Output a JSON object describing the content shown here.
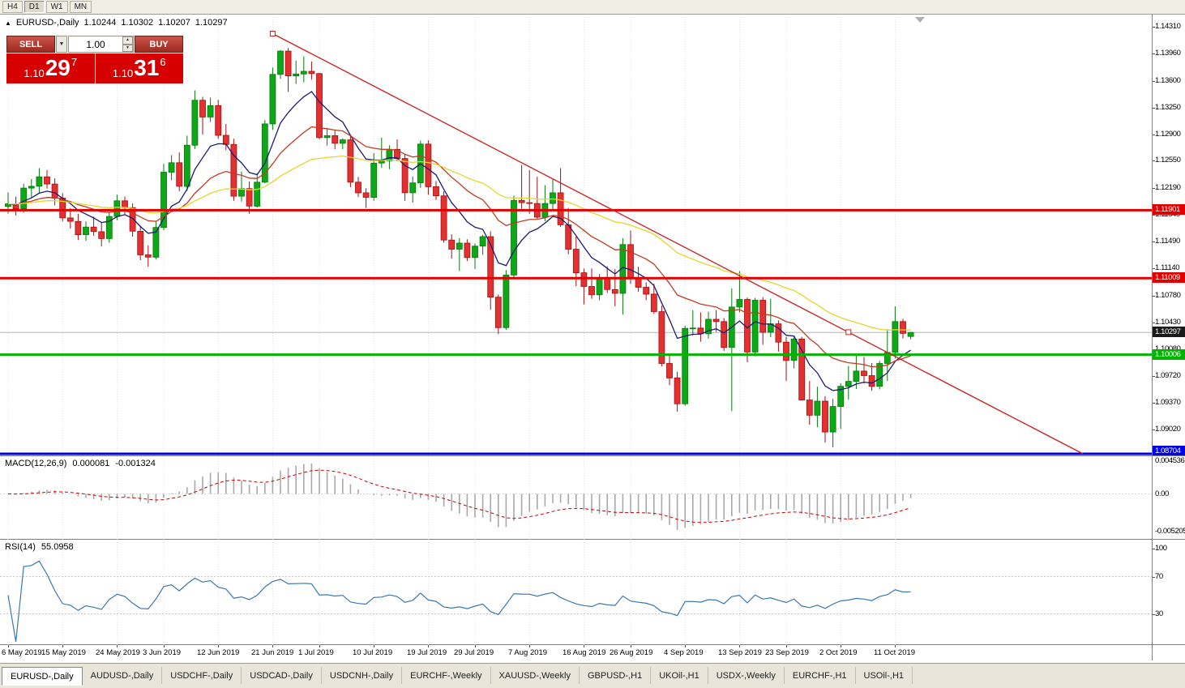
{
  "toolbar": {
    "buttons": [
      {
        "label": "H4",
        "active": false
      },
      {
        "label": "D1",
        "active": true
      },
      {
        "label": "W1",
        "active": false
      },
      {
        "label": "MN",
        "active": false
      }
    ]
  },
  "icons": {
    "dropdown": "▼",
    "spin_up": "▲",
    "spin_down": "▼"
  },
  "chart_header": {
    "collapse_icon": "▲",
    "symbol": "EURUSD-,Daily",
    "open": "1.10244",
    "high": "1.10302",
    "low": "1.10207",
    "close": "1.10297"
  },
  "trade_panel": {
    "sell_label": "SELL",
    "buy_label": "BUY",
    "volume": "1.00",
    "sell_price": {
      "base": "1.10",
      "pips": "29",
      "pipette": "7"
    },
    "buy_price": {
      "base": "1.10",
      "pips": "31",
      "pipette": "6"
    },
    "price_bg": "#d60000"
  },
  "indicators": {
    "macd": {
      "label": "MACD(12,26,9)",
      "value": "0.000081",
      "signal_value": "-0.001324",
      "colors": {
        "histogram": "#a8a8a8",
        "signal": "#cc0000"
      },
      "axis": [
        {
          "v": 0.004536,
          "label": "0.004536"
        },
        {
          "v": 0,
          "label": "0.00"
        },
        {
          "v": -0.005205,
          "label": "-0.005205"
        }
      ]
    },
    "rsi": {
      "label": "RSI(14)",
      "value": "55.0958",
      "color": "#3a76af",
      "levels": [
        70,
        30
      ],
      "axis": [
        {
          "v": 100,
          "label": "100"
        },
        {
          "v": 70,
          "label": "70"
        },
        {
          "v": 30,
          "label": "30"
        }
      ]
    }
  },
  "chart_data": {
    "type": "candlestick",
    "symbol": "EURUSD",
    "timeframe": "Daily",
    "y_ticks": [
      "1.14310",
      "1.13960",
      "1.13600",
      "1.13250",
      "1.12900",
      "1.12550",
      "1.12190",
      "1.11840",
      "1.11490",
      "1.11140",
      "1.10780",
      "1.10430",
      "1.10080",
      "1.09720",
      "1.09370",
      "1.09020"
    ],
    "x_ticks": [
      {
        "label": "6 May 2019",
        "i": 0
      },
      {
        "label": "15 May 2019",
        "i": 7
      },
      {
        "label": "24 May 2019",
        "i": 14
      },
      {
        "label": "3 Jun 2019",
        "i": 20
      },
      {
        "label": "12 Jun 2019",
        "i": 27
      },
      {
        "label": "21 Jun 2019",
        "i": 34
      },
      {
        "label": "1 Jul 2019",
        "i": 40
      },
      {
        "label": "10 Jul 2019",
        "i": 47
      },
      {
        "label": "19 Jul 2019",
        "i": 54
      },
      {
        "label": "29 Jul 2019",
        "i": 60
      },
      {
        "label": "7 Aug 2019",
        "i": 67
      },
      {
        "label": "16 Aug 2019",
        "i": 74
      },
      {
        "label": "26 Aug 2019",
        "i": 80
      },
      {
        "label": "4 Sep 2019",
        "i": 87
      },
      {
        "label": "13 Sep 2019",
        "i": 94
      },
      {
        "label": "23 Sep 2019",
        "i": 100
      },
      {
        "label": "2 Oct 2019",
        "i": 107
      },
      {
        "label": "11 Oct 2019",
        "i": 114
      }
    ],
    "levels": [
      {
        "price": 1.11901,
        "label": "1.11901",
        "color": "#e10000"
      },
      {
        "price": 1.11009,
        "label": "1.11009",
        "color": "#e10000"
      },
      {
        "price": 1.10006,
        "label": "1.10006",
        "color": "#00b400"
      },
      {
        "price": 1.08704,
        "label": "1.08704",
        "color": "#0000e1"
      }
    ],
    "current_price": {
      "price": 1.10297,
      "label": "1.10297",
      "badge_bg": "#1a1a1a"
    },
    "trendline": {
      "i1": 34,
      "p1": 1.1422,
      "i2": 108,
      "p2": 1.103,
      "color": "#cc2222"
    },
    "moving_averages": [
      {
        "period": 8,
        "color": "#1b1b74"
      },
      {
        "period": 20,
        "color": "#c23b22"
      },
      {
        "period": 45,
        "color": "#e7d52b"
      }
    ],
    "candle_colors": {
      "up": "#0da815",
      "up_stroke": "#067a0c",
      "down": "#e33030",
      "down_stroke": "#a31010"
    },
    "candles": [
      [
        1.1195,
        1.12135,
        1.11855,
        1.11985
      ],
      [
        1.11985,
        1.1208,
        1.1183,
        1.1192
      ],
      [
        1.1192,
        1.1225,
        1.1187,
        1.12192
      ],
      [
        1.12192,
        1.1231,
        1.1206,
        1.12215
      ],
      [
        1.12215,
        1.12455,
        1.12125,
        1.1234
      ],
      [
        1.1234,
        1.1243,
        1.12185,
        1.12245
      ],
      [
        1.12245,
        1.1232,
        1.11965,
        1.1206
      ],
      [
        1.1206,
        1.12125,
        1.11755,
        1.118
      ],
      [
        1.118,
        1.1193,
        1.1166,
        1.11755
      ],
      [
        1.11755,
        1.11855,
        1.1151,
        1.1158
      ],
      [
        1.1158,
        1.11755,
        1.115,
        1.1168
      ],
      [
        1.1168,
        1.11815,
        1.11565,
        1.1162
      ],
      [
        1.1162,
        1.11735,
        1.11425,
        1.1153
      ],
      [
        1.1153,
        1.1188,
        1.11475,
        1.1182
      ],
      [
        1.1182,
        1.12105,
        1.1177,
        1.12025
      ],
      [
        1.12025,
        1.1208,
        1.1185,
        1.11935
      ],
      [
        1.11935,
        1.1199,
        1.11555,
        1.11625
      ],
      [
        1.11625,
        1.117,
        1.11245,
        1.11315
      ],
      [
        1.11315,
        1.1144,
        1.1116,
        1.11285
      ],
      [
        1.11285,
        1.1176,
        1.11255,
        1.11675
      ],
      [
        1.11675,
        1.1251,
        1.1164,
        1.124
      ],
      [
        1.124,
        1.12625,
        1.12295,
        1.12525
      ],
      [
        1.12525,
        1.1266,
        1.1215,
        1.12215
      ],
      [
        1.12215,
        1.1288,
        1.12155,
        1.12755
      ],
      [
        1.12755,
        1.13475,
        1.12705,
        1.13345
      ],
      [
        1.13345,
        1.1339,
        1.12895,
        1.13125
      ],
      [
        1.13125,
        1.1338,
        1.1306,
        1.13275
      ],
      [
        1.13275,
        1.1335,
        1.1284,
        1.12885
      ],
      [
        1.12885,
        1.13035,
        1.1269,
        1.12765
      ],
      [
        1.12765,
        1.1284,
        1.12025,
        1.12085
      ],
      [
        1.12085,
        1.1241,
        1.12015,
        1.12185
      ],
      [
        1.12185,
        1.1228,
        1.11855,
        1.11955
      ],
      [
        1.11955,
        1.12385,
        1.11935,
        1.1227
      ],
      [
        1.1227,
        1.13085,
        1.12255,
        1.13035
      ],
      [
        1.13035,
        1.13775,
        1.12955,
        1.13685
      ],
      [
        1.13685,
        1.14005,
        1.13625,
        1.1399
      ],
      [
        1.1399,
        1.1403,
        1.13455,
        1.13665
      ],
      [
        1.13665,
        1.13865,
        1.1356,
        1.1369
      ],
      [
        1.1369,
        1.1392,
        1.1358,
        1.13725
      ],
      [
        1.13725,
        1.13855,
        1.13615,
        1.13695
      ],
      [
        1.13695,
        1.13705,
        1.12835,
        1.12855
      ],
      [
        1.12855,
        1.1297,
        1.1275,
        1.1288
      ],
      [
        1.1288,
        1.12945,
        1.127,
        1.1278
      ],
      [
        1.1278,
        1.12845,
        1.127,
        1.12825
      ],
      [
        1.12825,
        1.1288,
        1.12205,
        1.1227
      ],
      [
        1.1227,
        1.1234,
        1.12075,
        1.1213
      ],
      [
        1.1213,
        1.1219,
        1.1193,
        1.1207
      ],
      [
        1.1207,
        1.1265,
        1.12025,
        1.1252
      ],
      [
        1.1252,
        1.12855,
        1.1246,
        1.1255
      ],
      [
        1.1255,
        1.12755,
        1.1244,
        1.127
      ],
      [
        1.127,
        1.1283,
        1.12545,
        1.1258
      ],
      [
        1.1258,
        1.1264,
        1.12025,
        1.1213
      ],
      [
        1.1213,
        1.12345,
        1.12,
        1.1226
      ],
      [
        1.1226,
        1.12815,
        1.12195,
        1.1277
      ],
      [
        1.1277,
        1.1282,
        1.12105,
        1.1221
      ],
      [
        1.1221,
        1.12285,
        1.12035,
        1.1209
      ],
      [
        1.1209,
        1.1215,
        1.11475,
        1.1151
      ],
      [
        1.1151,
        1.11585,
        1.11265,
        1.1139
      ],
      [
        1.1139,
        1.11535,
        1.11105,
        1.1147
      ],
      [
        1.1147,
        1.1152,
        1.11235,
        1.1128
      ],
      [
        1.1128,
        1.11465,
        1.1113,
        1.1143
      ],
      [
        1.1143,
        1.1158,
        1.11315,
        1.11555
      ],
      [
        1.11555,
        1.11625,
        1.10595,
        1.1076
      ],
      [
        1.1076,
        1.10795,
        1.10275,
        1.1036
      ],
      [
        1.1036,
        1.11115,
        1.1033,
        1.1105
      ],
      [
        1.1105,
        1.12095,
        1.1101,
        1.1203
      ],
      [
        1.1203,
        1.12495,
        1.1192,
        1.12
      ],
      [
        1.12,
        1.1243,
        1.11855,
        1.1199
      ],
      [
        1.1199,
        1.1234,
        1.1179,
        1.1181
      ],
      [
        1.1181,
        1.1223,
        1.11755,
        1.1199
      ],
      [
        1.1199,
        1.12305,
        1.1191,
        1.1213
      ],
      [
        1.1213,
        1.12455,
        1.1168,
        1.1171
      ],
      [
        1.1171,
        1.1193,
        1.11325,
        1.1139
      ],
      [
        1.1139,
        1.11555,
        1.10905,
        1.1108
      ],
      [
        1.1108,
        1.11135,
        1.10665,
        1.109
      ],
      [
        1.109,
        1.11135,
        1.1074,
        1.1079
      ],
      [
        1.1079,
        1.11065,
        1.1072,
        1.11
      ],
      [
        1.11,
        1.11165,
        1.10815,
        1.1086
      ],
      [
        1.1086,
        1.1113,
        1.1064,
        1.1081
      ],
      [
        1.1081,
        1.11535,
        1.1053,
        1.1145
      ],
      [
        1.1145,
        1.11635,
        1.10935,
        1.1101
      ],
      [
        1.1101,
        1.1116,
        1.1083,
        1.1089
      ],
      [
        1.1089,
        1.10955,
        1.1072,
        1.108
      ],
      [
        1.108,
        1.10935,
        1.1054,
        1.1057
      ],
      [
        1.1057,
        1.1065,
        1.0985,
        1.0989
      ],
      [
        1.0989,
        1.0999,
        1.09605,
        1.097
      ],
      [
        1.097,
        1.0978,
        1.09255,
        1.0936
      ],
      [
        1.0936,
        1.10385,
        1.09335,
        1.1035
      ],
      [
        1.1035,
        1.1059,
        1.10255,
        1.10355
      ],
      [
        1.10355,
        1.1056,
        1.10175,
        1.1028
      ],
      [
        1.1028,
        1.1057,
        1.10215,
        1.1047
      ],
      [
        1.1047,
        1.1059,
        1.10305,
        1.1044
      ],
      [
        1.1044,
        1.10485,
        1.10055,
        1.101
      ],
      [
        1.101,
        1.10875,
        1.09265,
        1.1063
      ],
      [
        1.1063,
        1.111,
        1.1056,
        1.1073
      ],
      [
        1.1073,
        1.10755,
        1.09905,
        1.1004
      ],
      [
        1.1004,
        1.1075,
        1.09985,
        1.1072
      ],
      [
        1.1072,
        1.1076,
        1.10135,
        1.103
      ],
      [
        1.103,
        1.1074,
        1.10235,
        1.1041
      ],
      [
        1.1041,
        1.10455,
        1.10045,
        1.1017
      ],
      [
        1.1017,
        1.1024,
        1.0966,
        1.0993
      ],
      [
        1.0993,
        1.10245,
        1.09825,
        1.1021
      ],
      [
        1.1021,
        1.1024,
        1.094,
        1.0941
      ],
      [
        1.0941,
        1.0966,
        1.09085,
        1.0921
      ],
      [
        1.0921,
        1.09585,
        1.09055,
        1.09395
      ],
      [
        1.09395,
        1.0946,
        1.0885,
        1.0899
      ],
      [
        1.0899,
        1.09425,
        1.0879,
        1.09325
      ],
      [
        1.09325,
        1.0963,
        1.0903,
        1.0959
      ],
      [
        1.0959,
        1.09855,
        1.09415,
        1.09655
      ],
      [
        1.09655,
        1.09995,
        1.09555,
        1.0979
      ],
      [
        1.0979,
        1.09975,
        1.09625,
        1.0973
      ],
      [
        1.0973,
        1.09895,
        1.0953,
        1.0959
      ],
      [
        1.0959,
        1.09925,
        1.0955,
        1.0989
      ],
      [
        1.0989,
        1.1034,
        1.0966,
        1.10035
      ],
      [
        1.10035,
        1.1064,
        1.09955,
        1.1044
      ],
      [
        1.1044,
        1.10475,
        1.1022,
        1.10285
      ],
      [
        1.10244,
        1.10302,
        1.10207,
        1.10297
      ]
    ]
  },
  "tab_bar": {
    "tabs": [
      {
        "label": "EURUSD-,Daily",
        "active": true
      },
      {
        "label": "AUDUSD-,Daily",
        "active": false
      },
      {
        "label": "USDCHF-,Daily",
        "active": false
      },
      {
        "label": "USDCAD-,Daily",
        "active": false
      },
      {
        "label": "USDCNH-,Daily",
        "active": false
      },
      {
        "label": "EURCHF-,Weekly",
        "active": false
      },
      {
        "label": "XAUUSD-,Weekly",
        "active": false
      },
      {
        "label": "GBPUSD-,H1",
        "active": false
      },
      {
        "label": "UKOil-,H1",
        "active": false
      },
      {
        "label": "USDX-,Weekly",
        "active": false
      },
      {
        "label": "EURCHF-,H1",
        "active": false
      },
      {
        "label": "USOil-,H1",
        "active": false
      }
    ]
  }
}
